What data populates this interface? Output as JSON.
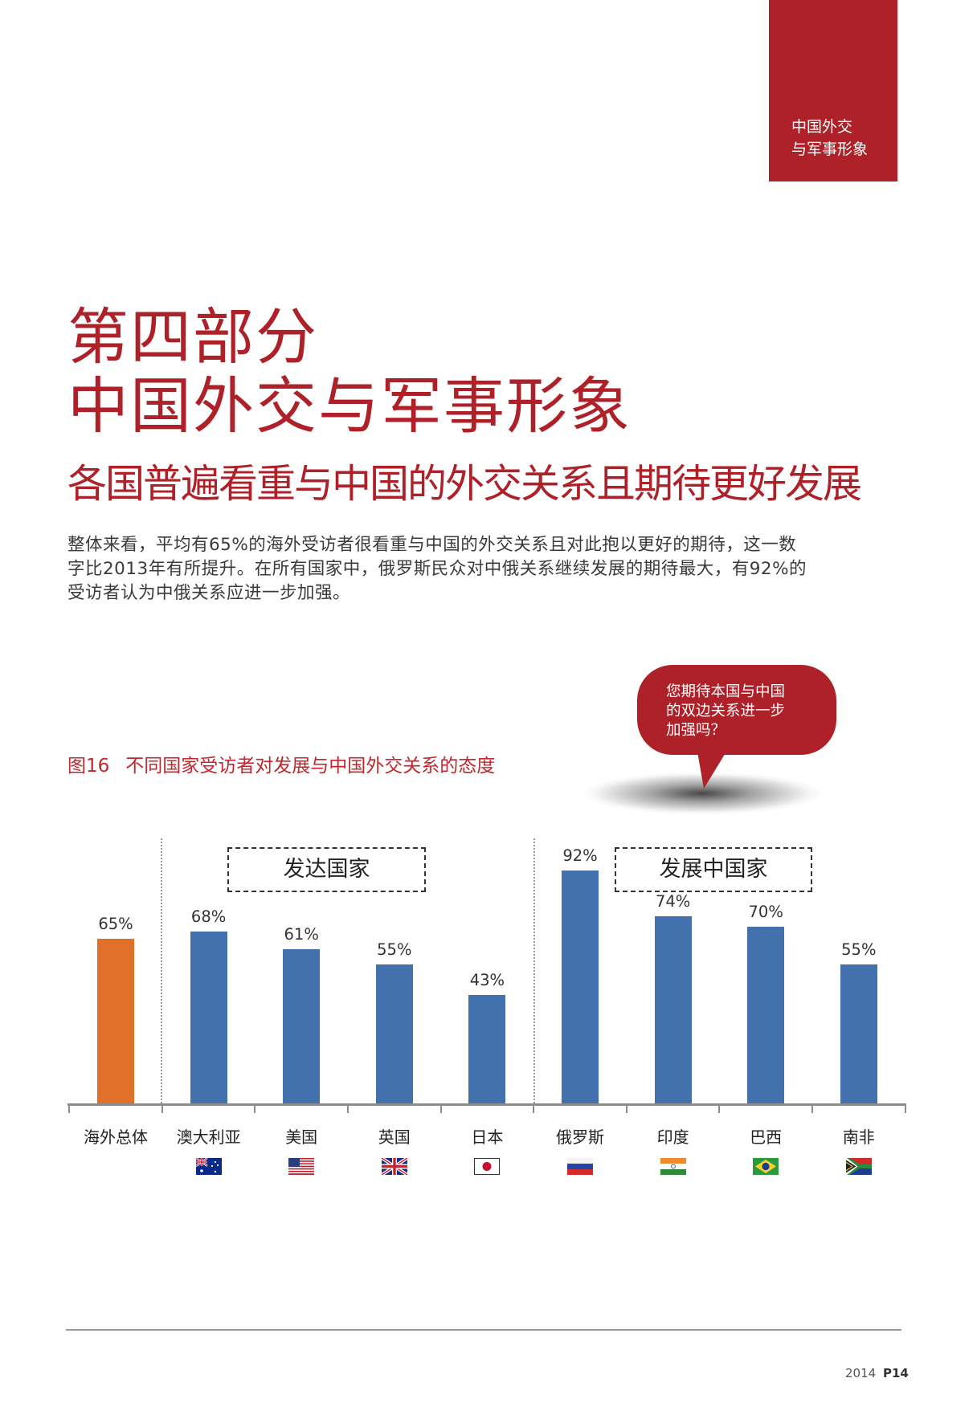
{
  "corner_tab": {
    "lines": [
      "中国外交",
      "与军事形象"
    ],
    "color": "#ae2129"
  },
  "header": {
    "title_line1": "第四部分",
    "title_line2": "中国外交与军事形象",
    "subtitle": "各国普遍看重与中国的外交关系且期待更好发展"
  },
  "body": {
    "lines": [
      "整体来看，平均有65%的海外受访者很看重与中国的外交关系且对此抱以更好的期待，这一数",
      "字比2013年有所提升。在所有国家中，俄罗斯民众对中俄关系继续发展的期待最大，有92%的",
      "受访者认为中俄关系应进一步加强。"
    ]
  },
  "figure": {
    "number": "图16",
    "caption": "不同国家受访者对发展与中国外交关系的态度",
    "question_bubble": [
      "您期待本国与中国",
      "的双边关系进一步",
      "加强吗？"
    ]
  },
  "chart_data": {
    "type": "bar",
    "categories": [
      "海外总体",
      "澳大利亚",
      "美国",
      "英国",
      "日本",
      "俄罗斯",
      "印度",
      "巴西",
      "南非"
    ],
    "values": [
      65,
      68,
      61,
      55,
      43,
      92,
      74,
      70,
      55
    ],
    "value_labels": [
      "65%",
      "68%",
      "61%",
      "55%",
      "43%",
      "92%",
      "74%",
      "70%",
      "55%"
    ],
    "groups": [
      {
        "label": "发达国家",
        "categories": [
          "澳大利亚",
          "美国",
          "英国",
          "日本"
        ]
      },
      {
        "label": "发展中国家",
        "categories": [
          "俄罗斯",
          "印度",
          "巴西",
          "南非"
        ]
      }
    ],
    "colors": {
      "overall": "#e0702a",
      "countries": "#4271ae"
    },
    "ylim": [
      0,
      100
    ],
    "grid": false,
    "flags": [
      "",
      "australia-flag",
      "usa-flag",
      "uk-flag",
      "japan-flag",
      "russia-flag",
      "india-flag",
      "brazil-flag",
      "south-africa-flag"
    ]
  },
  "footer": {
    "year": "2014",
    "page": "P14"
  }
}
